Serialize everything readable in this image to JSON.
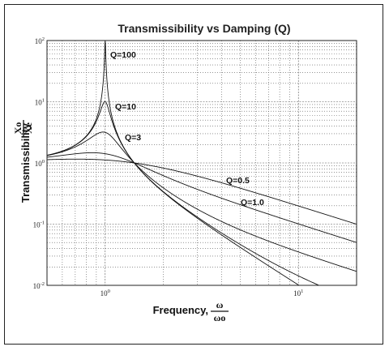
{
  "chart_data": {
    "type": "line",
    "title": "Transmissibility vs Damping (Q)",
    "xlabel": "Frequency,",
    "xlabel_fraction": {
      "numerator": "ω",
      "denominator": "ωo"
    },
    "ylabel": "Transmissibility",
    "ylabel_fraction": {
      "numerator": "Xo",
      "denominator": "Xe"
    },
    "x_scale": "log",
    "y_scale": "log",
    "xlim": [
      0.5,
      20
    ],
    "ylim": [
      0.01,
      100
    ],
    "grid": true,
    "x_ticks": [
      {
        "base": "10",
        "exp": "0",
        "value": 1
      },
      {
        "base": "10",
        "exp": "1",
        "value": 10
      }
    ],
    "y_ticks": [
      {
        "base": "10",
        "exp": "2",
        "value": 100
      },
      {
        "base": "10",
        "exp": "1",
        "value": 10
      },
      {
        "base": "10",
        "exp": "0",
        "value": 1
      },
      {
        "base": "10",
        "exp": "-1",
        "value": 0.1
      },
      {
        "base": "10",
        "exp": "-2",
        "value": 0.01
      }
    ],
    "series": [
      {
        "name": "Q=100",
        "Q": 100
      },
      {
        "name": "Q=10",
        "Q": 10
      },
      {
        "name": "Q=3",
        "Q": 3
      },
      {
        "name": "Q=1.0",
        "Q": 1.0
      },
      {
        "name": "Q=0.5",
        "Q": 0.5
      }
    ],
    "annotations": [
      "Q=100",
      "Q=10",
      "Q=3",
      "Q=0.5",
      "Q=1.0"
    ]
  }
}
